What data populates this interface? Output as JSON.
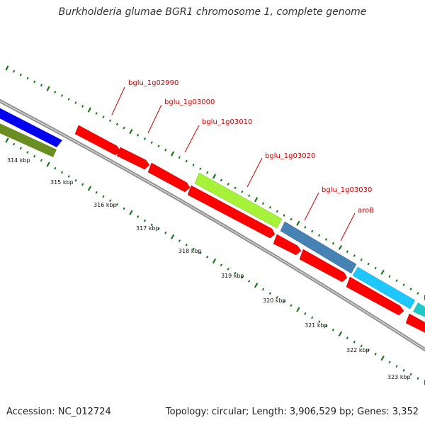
{
  "title": "Burkholderia glumae BGR1 chromosome 1, complete genome",
  "footer": {
    "accession": "Accession: NC_012724",
    "summary": "Topology: circular; Length: 3,906,529 bp; Genes: 3,352"
  },
  "kbp_ticks": [
    "314 kbp",
    "315 kbp",
    "316 kbp",
    "317 kbp",
    "318 kbp",
    "319 kbp",
    "320 kbp",
    "321 kbp",
    "322 kbp",
    "323 kbp"
  ],
  "gene_labels": [
    "bglu_1g02990",
    "bglu_1g03000",
    "bglu_1g03010",
    "bglu_1g03020",
    "bglu_1g03030",
    "aroB"
  ],
  "colors": {
    "tick": "#1a7a1a",
    "backbone": "#808080",
    "red_gene": "#ff0000",
    "label_red": "#cc0000",
    "blue": "#0000ff",
    "olive": "#6b8e23",
    "lime": "#a6f23a",
    "steelblue": "#4682b4",
    "deepskyblue": "#1ec8ff",
    "teal": "#20c8c8"
  }
}
